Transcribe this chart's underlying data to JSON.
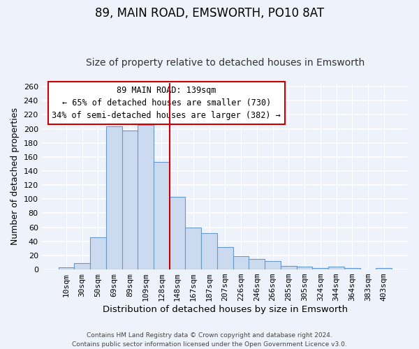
{
  "title": "89, MAIN ROAD, EMSWORTH, PO10 8AT",
  "subtitle": "Size of property relative to detached houses in Emsworth",
  "xlabel": "Distribution of detached houses by size in Emsworth",
  "ylabel": "Number of detached properties",
  "footer_line1": "Contains HM Land Registry data © Crown copyright and database right 2024.",
  "footer_line2": "Contains public sector information licensed under the Open Government Licence v3.0.",
  "bar_labels": [
    "10sqm",
    "30sqm",
    "50sqm",
    "69sqm",
    "89sqm",
    "109sqm",
    "128sqm",
    "148sqm",
    "167sqm",
    "187sqm",
    "207sqm",
    "226sqm",
    "246sqm",
    "266sqm",
    "285sqm",
    "305sqm",
    "324sqm",
    "344sqm",
    "364sqm",
    "383sqm",
    "403sqm"
  ],
  "bar_values": [
    3,
    9,
    46,
    203,
    198,
    205,
    153,
    103,
    60,
    52,
    32,
    19,
    15,
    12,
    5,
    4,
    2,
    4,
    2,
    0,
    2
  ],
  "bar_color": "#ccdaf0",
  "bar_edge_color": "#6699cc",
  "vline_color": "#cc0000",
  "annotation_title": "89 MAIN ROAD: 139sqm",
  "annotation_line1": "← 65% of detached houses are smaller (730)",
  "annotation_line2": "34% of semi-detached houses are larger (382) →",
  "annotation_box_color": "#ffffff",
  "annotation_box_edge_color": "#cc0000",
  "ylim": [
    0,
    265
  ],
  "yticks": [
    0,
    20,
    40,
    60,
    80,
    100,
    120,
    140,
    160,
    180,
    200,
    220,
    240,
    260
  ],
  "title_fontsize": 12,
  "subtitle_fontsize": 10,
  "xlabel_fontsize": 9.5,
  "ylabel_fontsize": 9,
  "tick_fontsize": 8,
  "annotation_fontsize": 8.5,
  "footer_fontsize": 6.5,
  "bg_color": "#eef2fa"
}
